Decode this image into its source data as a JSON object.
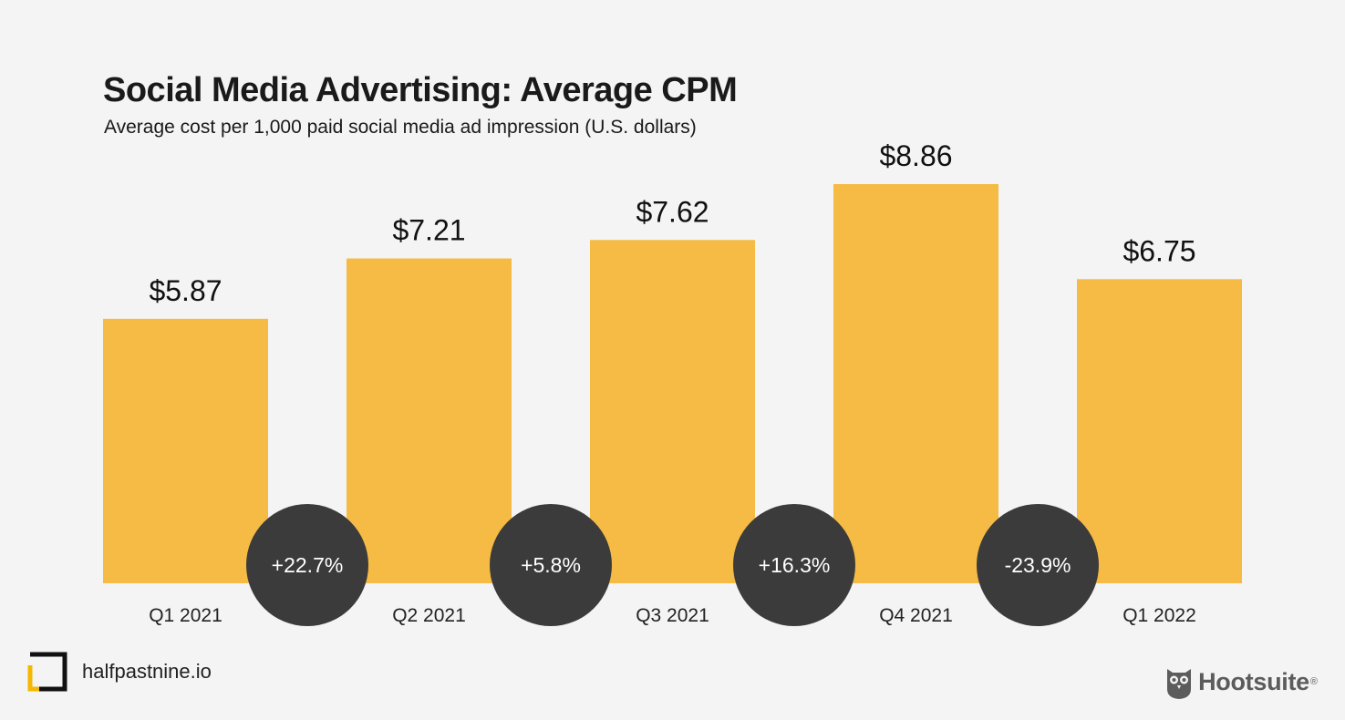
{
  "title": "Social Media Advertising: Average CPM",
  "subtitle": "Average cost per 1,000 paid social media ad impression (U.S. dollars)",
  "colors": {
    "bar": "#f5bb45",
    "circle": "#3b3b3b",
    "background": "#f4f4f4"
  },
  "chart_data": {
    "type": "bar",
    "categories": [
      "Q1 2021",
      "Q2 2021",
      "Q3 2021",
      "Q4 2021",
      "Q1 2022"
    ],
    "values": [
      5.87,
      7.21,
      7.62,
      8.86,
      6.75
    ],
    "value_labels": [
      "$5.87",
      "$7.21",
      "$7.62",
      "$8.86",
      "$6.75"
    ],
    "changes": [
      "+22.7%",
      "+5.8%",
      "+16.3%",
      "-23.9%"
    ],
    "title": "Social Media Advertising: Average CPM",
    "subtitle": "Average cost per 1,000 paid social media ad impression (U.S. dollars)",
    "xlabel": "",
    "ylabel": "",
    "ylim": [
      0,
      8.86
    ],
    "grid": false,
    "legend": "none"
  },
  "footer": {
    "site": "halfpastnine.io",
    "brand": "Hootsuite",
    "brand_mark": "®",
    "logo_icon": "bracket-square-icon",
    "brand_icon": "owl-icon"
  }
}
